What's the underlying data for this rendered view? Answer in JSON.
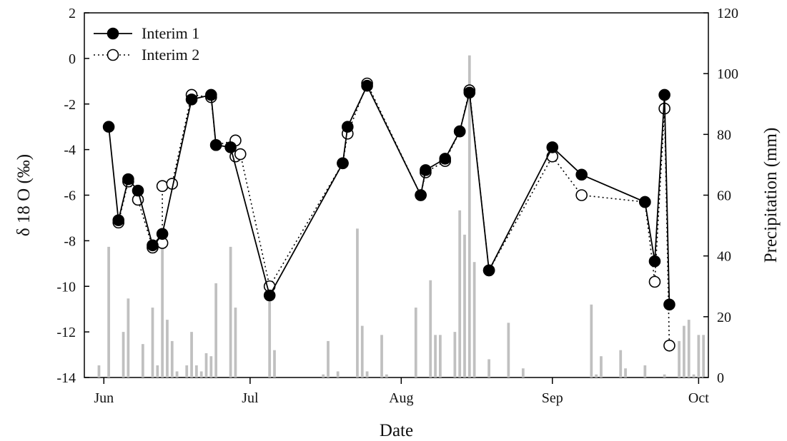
{
  "chart_data": {
    "type": "line",
    "xlabel": "Date",
    "ylabel_left": "δ 18 O (‰)",
    "ylabel_right": "Precipitation (mm)",
    "ylim_left": [
      -14,
      2
    ],
    "yticks_left": [
      -14,
      -12,
      -10,
      -8,
      -6,
      -4,
      -2,
      0,
      2
    ],
    "ylim_right": [
      0,
      120
    ],
    "yticks_right": [
      0,
      20,
      40,
      60,
      80,
      100,
      120
    ],
    "xlim": [
      "2011-05-28",
      "2011-10-03"
    ],
    "xticks": [
      {
        "date": "2011-06-01",
        "label": "Jun"
      },
      {
        "date": "2011-07-01",
        "label": "Jul"
      },
      {
        "date": "2011-08-01",
        "label": "Aug"
      },
      {
        "date": "2011-09-01",
        "label": "Sep"
      },
      {
        "date": "2011-10-01",
        "label": "Oct"
      }
    ],
    "grid": false,
    "legend_position": "top-left",
    "series": [
      {
        "name": "Interim 1",
        "style": "solid",
        "marker_fill": "#000000",
        "points": [
          [
            "2011-06-02",
            -3.0
          ],
          [
            "2011-06-04",
            -7.1
          ],
          [
            "2011-06-06",
            -5.3
          ],
          [
            "2011-06-08",
            -5.8
          ],
          [
            "2011-06-11",
            -8.2
          ],
          [
            "2011-06-13",
            -7.7
          ],
          [
            "2011-06-19",
            -1.8
          ],
          [
            "2011-06-23",
            -1.6
          ],
          [
            "2011-06-24",
            -3.8
          ],
          [
            "2011-06-27",
            -3.9
          ],
          [
            "2011-07-05",
            -10.4
          ],
          [
            "2011-07-20",
            -4.6
          ],
          [
            "2011-07-21",
            -3.0
          ],
          [
            "2011-07-25",
            -1.2
          ],
          [
            "2011-08-05",
            -6.0
          ],
          [
            "2011-08-06",
            -4.9
          ],
          [
            "2011-08-10",
            -4.4
          ],
          [
            "2011-08-13",
            -3.2
          ],
          [
            "2011-08-15",
            -1.5
          ],
          [
            "2011-08-19",
            -9.3
          ],
          [
            "2011-09-01",
            -3.9
          ],
          [
            "2011-09-07",
            -5.1
          ],
          [
            "2011-09-20",
            -6.3
          ],
          [
            "2011-09-22",
            -8.9
          ],
          [
            "2011-09-24",
            -1.6
          ],
          [
            "2011-09-25",
            -10.8
          ]
        ]
      },
      {
        "name": "Interim 2",
        "style": "dotted",
        "marker_fill": "#ffffff",
        "points": [
          [
            "2011-06-04",
            -7.2
          ],
          [
            "2011-06-06",
            -5.4
          ],
          [
            "2011-06-08",
            -6.2
          ],
          [
            "2011-06-11",
            -8.3
          ],
          [
            "2011-06-13",
            -8.1
          ],
          [
            "2011-06-13",
            -5.6
          ],
          [
            "2011-06-15",
            -5.5
          ],
          [
            "2011-06-19",
            -1.6
          ],
          [
            "2011-06-23",
            -1.7
          ],
          [
            "2011-06-24",
            -3.8
          ],
          [
            "2011-06-28",
            -3.6
          ],
          [
            "2011-06-28",
            -4.3
          ],
          [
            "2011-06-29",
            -4.2
          ],
          [
            "2011-07-05",
            -10.0
          ],
          [
            "2011-07-20",
            -4.6
          ],
          [
            "2011-07-21",
            -3.3
          ],
          [
            "2011-07-25",
            -1.1
          ],
          [
            "2011-08-05",
            -6.0
          ],
          [
            "2011-08-06",
            -5.0
          ],
          [
            "2011-08-10",
            -4.5
          ],
          [
            "2011-08-13",
            -3.2
          ],
          [
            "2011-08-15",
            -1.4
          ],
          [
            "2011-08-19",
            -9.3
          ],
          [
            "2011-09-01",
            -4.3
          ],
          [
            "2011-09-07",
            -6.0
          ],
          [
            "2011-09-20",
            -6.3
          ],
          [
            "2011-09-22",
            -9.8
          ],
          [
            "2011-09-24",
            -2.2
          ],
          [
            "2011-09-25",
            -12.6
          ]
        ]
      }
    ],
    "precipitation": {
      "name": "Precipitation",
      "bar_color": "#c0c0c0",
      "bars": [
        [
          "2011-05-31",
          4
        ],
        [
          "2011-06-02",
          43
        ],
        [
          "2011-06-05",
          15
        ],
        [
          "2011-06-06",
          26
        ],
        [
          "2011-06-09",
          11
        ],
        [
          "2011-06-11",
          23
        ],
        [
          "2011-06-12",
          4
        ],
        [
          "2011-06-13",
          46
        ],
        [
          "2011-06-14",
          19
        ],
        [
          "2011-06-15",
          12
        ],
        [
          "2011-06-16",
          2
        ],
        [
          "2011-06-18",
          4
        ],
        [
          "2011-06-19",
          15
        ],
        [
          "2011-06-20",
          4
        ],
        [
          "2011-06-21",
          2
        ],
        [
          "2011-06-22",
          8
        ],
        [
          "2011-06-23",
          7
        ],
        [
          "2011-06-24",
          31
        ],
        [
          "2011-06-27",
          43
        ],
        [
          "2011-06-28",
          23
        ],
        [
          "2011-07-05",
          25
        ],
        [
          "2011-07-06",
          9
        ],
        [
          "2011-07-16",
          1
        ],
        [
          "2011-07-17",
          12
        ],
        [
          "2011-07-19",
          2
        ],
        [
          "2011-07-23",
          49
        ],
        [
          "2011-07-24",
          17
        ],
        [
          "2011-07-25",
          2
        ],
        [
          "2011-07-28",
          14
        ],
        [
          "2011-07-29",
          1
        ],
        [
          "2011-08-04",
          23
        ],
        [
          "2011-08-07",
          32
        ],
        [
          "2011-08-08",
          14
        ],
        [
          "2011-08-09",
          14
        ],
        [
          "2011-08-12",
          15
        ],
        [
          "2011-08-13",
          55
        ],
        [
          "2011-08-14",
          47
        ],
        [
          "2011-08-15",
          106
        ],
        [
          "2011-08-16",
          38
        ],
        [
          "2011-08-19",
          6
        ],
        [
          "2011-08-23",
          18
        ],
        [
          "2011-08-26",
          3
        ],
        [
          "2011-09-09",
          24
        ],
        [
          "2011-09-10",
          1
        ],
        [
          "2011-09-11",
          7
        ],
        [
          "2011-09-15",
          9
        ],
        [
          "2011-09-16",
          3
        ],
        [
          "2011-09-20",
          4
        ],
        [
          "2011-09-24",
          1
        ],
        [
          "2011-09-27",
          12
        ],
        [
          "2011-09-28",
          17
        ],
        [
          "2011-09-29",
          19
        ],
        [
          "2011-09-30",
          1
        ],
        [
          "2011-10-01",
          14
        ],
        [
          "2011-10-02",
          14
        ]
      ]
    }
  }
}
